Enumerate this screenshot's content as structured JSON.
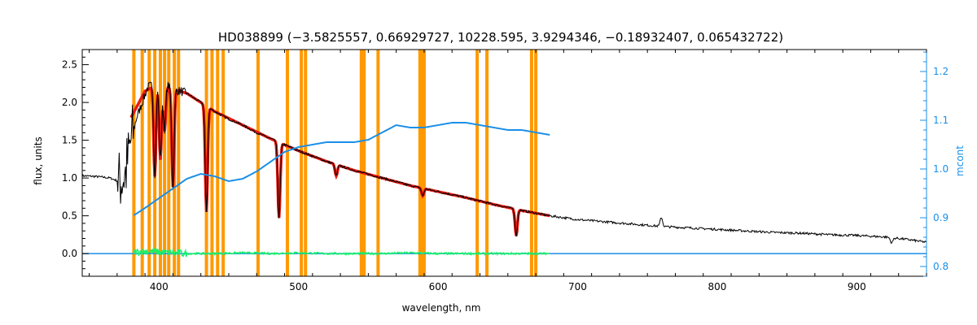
{
  "chart_data": {
    "type": "line",
    "title": "HD038899   (−3.5825557, 0.66929727, 10228.595, 3.9294346, −0.18932407, 0.065432722)",
    "xlabel": "wavelength, nm",
    "ylabel": "flux, units",
    "y2label": "mcont",
    "xlim": [
      345,
      950
    ],
    "ylim": [
      -0.3,
      2.7
    ],
    "y2lim": [
      0.78,
      1.245
    ],
    "xticks": [
      400,
      500,
      600,
      700,
      800,
      900
    ],
    "yticks": [
      0.0,
      0.5,
      1.0,
      1.5,
      2.0,
      2.5
    ],
    "y2ticks": [
      0.8,
      0.9,
      1.0,
      1.1,
      1.2
    ],
    "xtick_labels": [
      "400",
      "500",
      "600",
      "700",
      "800",
      "900"
    ],
    "ytick_labels": [
      "0.0",
      "0.5",
      "1.0",
      "1.5",
      "2.0",
      "2.5"
    ],
    "y2tick_labels": [
      "0.8",
      "0.9",
      "1.0",
      "1.1",
      "1.2"
    ],
    "colors": {
      "observed": "#000000",
      "model": "#e8190f",
      "continuum": "#1a8fe8",
      "residual": "#18f06a",
      "masked_lines": "#ff9900"
    },
    "masked_lines_nm": [
      382,
      388,
      393,
      397,
      401,
      404,
      407,
      411,
      414,
      434,
      438,
      442,
      446,
      471,
      492,
      502,
      505,
      545,
      547,
      557,
      587,
      588,
      589,
      590,
      628,
      635,
      667,
      670
    ],
    "series": [
      {
        "id": "observed",
        "axis": "left",
        "x": [
          345,
          355,
          365,
          372,
          376,
          380,
          384,
          388,
          392,
          396,
          400,
          405,
          410,
          415,
          420,
          430,
          440,
          450,
          460,
          470,
          480,
          490,
          500,
          520,
          540,
          560,
          580,
          600,
          620,
          640,
          660,
          680,
          700,
          720,
          740,
          760,
          780,
          800,
          820,
          840,
          860,
          880,
          900,
          920,
          935,
          950
        ],
        "y": [
          1.03,
          1.02,
          1.0,
          0.95,
          1.05,
          1.5,
          1.8,
          2.0,
          2.2,
          2.25,
          2.25,
          2.25,
          2.18,
          2.15,
          2.12,
          2.0,
          1.88,
          1.78,
          1.7,
          1.6,
          1.52,
          1.44,
          1.36,
          1.22,
          1.1,
          1.0,
          0.9,
          0.82,
          0.74,
          0.65,
          0.57,
          0.5,
          0.45,
          0.42,
          0.39,
          0.36,
          0.34,
          0.32,
          0.3,
          0.28,
          0.27,
          0.25,
          0.24,
          0.22,
          0.19,
          0.15
        ]
      },
      {
        "id": "model",
        "axis": "left",
        "x": [
          380,
          390,
          400,
          410,
          420,
          440,
          460,
          480,
          500,
          520,
          540,
          560,
          580,
          600,
          620,
          640,
          660,
          680
        ],
        "y": [
          1.8,
          2.15,
          2.25,
          2.18,
          2.12,
          1.88,
          1.7,
          1.52,
          1.36,
          1.22,
          1.1,
          1.0,
          0.9,
          0.82,
          0.74,
          0.65,
          0.57,
          0.5
        ]
      },
      {
        "id": "continuum",
        "axis": "right",
        "x": [
          382,
          390,
          400,
          410,
          420,
          430,
          440,
          450,
          460,
          470,
          480,
          490,
          500,
          510,
          520,
          530,
          540,
          550,
          560,
          570,
          580,
          590,
          600,
          610,
          620,
          630,
          640,
          650,
          660,
          670,
          680
        ],
        "y": [
          0.905,
          0.92,
          0.94,
          0.96,
          0.98,
          0.99,
          0.985,
          0.975,
          0.98,
          0.995,
          1.015,
          1.035,
          1.045,
          1.05,
          1.055,
          1.055,
          1.055,
          1.06,
          1.075,
          1.09,
          1.085,
          1.085,
          1.09,
          1.095,
          1.095,
          1.09,
          1.085,
          1.08,
          1.08,
          1.075,
          1.07
        ]
      },
      {
        "id": "residual",
        "axis": "left",
        "x": [
          382,
          390,
          400,
          410,
          420,
          440,
          460,
          480,
          500,
          520,
          540,
          560,
          580,
          600,
          620,
          640,
          660,
          680
        ],
        "y": [
          0.02,
          0.03,
          0.02,
          0.01,
          0.0,
          0.0,
          0.01,
          0.0,
          0.01,
          0.0,
          0.0,
          0.0,
          0.01,
          0.0,
          0.0,
          0.0,
          0.0,
          0.0
        ]
      }
    ],
    "absorption_dips": [
      {
        "x": 397,
        "depth": 1.2
      },
      {
        "x": 401,
        "depth": 1.0
      },
      {
        "x": 404,
        "depth": 0.6
      },
      {
        "x": 410,
        "depth": 1.3
      },
      {
        "x": 434,
        "depth": 1.4
      },
      {
        "x": 486,
        "depth": 1.0
      },
      {
        "x": 527,
        "depth": 0.15
      },
      {
        "x": 589,
        "depth": 0.1
      },
      {
        "x": 656,
        "depth": 0.35
      },
      {
        "x": 760,
        "depth": -0.12
      },
      {
        "x": 925,
        "depth": 0.07
      }
    ],
    "residual_line_level": 0.0,
    "grid": false,
    "legend": "none"
  }
}
